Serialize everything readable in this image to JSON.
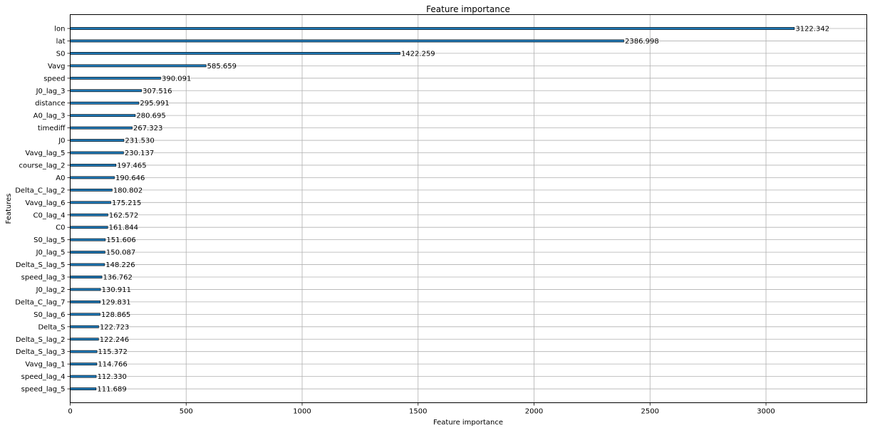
{
  "chart_data": {
    "type": "bar",
    "orientation": "horizontal",
    "title": "Feature importance",
    "xlabel": "Feature importance",
    "ylabel": "Features",
    "xlim": [
      0,
      3434.6
    ],
    "xticks": [
      0,
      500,
      1000,
      1500,
      2000,
      2500,
      3000
    ],
    "grid": true,
    "bar_color": "#1f77b4",
    "categories": [
      "lon",
      "lat",
      "S0",
      "Vavg",
      "speed",
      "J0_lag_3",
      "distance",
      "A0_lag_3",
      "timediff",
      "J0",
      "Vavg_lag_5",
      "course_lag_2",
      "A0",
      "Delta_C_lag_2",
      "Vavg_lag_6",
      "C0_lag_4",
      "C0",
      "S0_lag_5",
      "J0_lag_5",
      "Delta_S_lag_5",
      "speed_lag_3",
      "J0_lag_2",
      "Delta_C_lag_7",
      "S0_lag_6",
      "Delta_S",
      "Delta_S_lag_2",
      "Delta_S_lag_3",
      "Vavg_lag_1",
      "speed_lag_4",
      "speed_lag_5"
    ],
    "values": [
      3122.342,
      2386.998,
      1422.259,
      585.659,
      390.091,
      307.516,
      295.991,
      280.695,
      267.323,
      231.53,
      230.137,
      197.465,
      190.646,
      180.802,
      175.215,
      162.572,
      161.844,
      151.606,
      150.087,
      148.226,
      136.762,
      130.911,
      129.831,
      128.865,
      122.723,
      122.246,
      115.372,
      114.766,
      112.33,
      111.689
    ],
    "value_labels": [
      "3122.342",
      "2386.998",
      "1422.259",
      "585.659",
      "390.091",
      "307.516",
      "295.991",
      "280.695",
      "267.323",
      "231.530",
      "230.137",
      "197.465",
      "190.646",
      "180.802",
      "175.215",
      "162.572",
      "161.844",
      "151.606",
      "150.087",
      "148.226",
      "136.762",
      "130.911",
      "129.831",
      "128.865",
      "122.723",
      "122.246",
      "115.372",
      "114.766",
      "112.330",
      "111.689"
    ]
  }
}
